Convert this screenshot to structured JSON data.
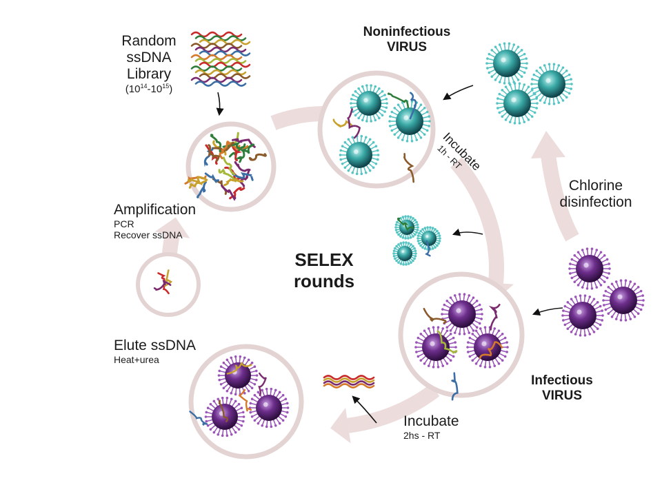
{
  "library": {
    "line1": "Random",
    "line2": "ssDNA",
    "line3": "Library",
    "range_open": "(10",
    "exp1": "14",
    "range_mid": "-10",
    "exp2": "15",
    "range_close": ")"
  },
  "noninfectious": {
    "line1": "Noninfectious",
    "line2": "VIRUS"
  },
  "incubate_1": {
    "title": "Incubate",
    "detail": "1h - RT"
  },
  "chlorine": {
    "line1": "Chlorine",
    "line2": "disinfection"
  },
  "infectious": {
    "line1": "Infectious",
    "line2": "VIRUS"
  },
  "incubate_2": {
    "title": "Incubate",
    "detail": "2hs - RT"
  },
  "elute": {
    "title": "Elute ssDNA",
    "detail": "Heat+urea"
  },
  "amplification": {
    "title": "Amplification",
    "detail1": "PCR",
    "detail2": "Recover ssDNA"
  },
  "center": {
    "line1": "SELEX",
    "line2": "rounds"
  },
  "colors": {
    "cycle_arrow": "#ecdcdc",
    "circle_border": "#e3d3d3",
    "noninfectious_virus": "#2c9a98",
    "noninfectious_spike": "#55c4c2",
    "infectious_virus": "#6d2e8c",
    "infectious_spike": "#9b55b8",
    "ssdna_strands": [
      "#c92a2a",
      "#2f7d3a",
      "#c7a12b",
      "#8b5a2b",
      "#7a2a6e",
      "#3a6ea5",
      "#d47a2a",
      "#a6b83a"
    ]
  }
}
